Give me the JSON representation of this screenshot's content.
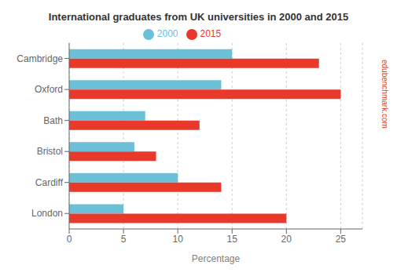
{
  "chart_data": {
    "type": "bar",
    "orientation": "horizontal",
    "title": "International graduates from UK universities in 2000 and 2015",
    "categories": [
      "London",
      "Cardiff",
      "Bristol",
      "Bath",
      "Oxford",
      "Cambridge"
    ],
    "series": [
      {
        "name": "2000",
        "color": "#6BBFD6",
        "values": [
          5,
          10,
          6,
          7,
          14,
          15
        ]
      },
      {
        "name": "2015",
        "color": "#E8392A",
        "values": [
          20,
          14,
          8,
          12,
          25,
          23
        ]
      }
    ],
    "xlabel": "Percentage",
    "xlim": [
      0,
      27
    ],
    "xticks": [
      0,
      5,
      10,
      15,
      20,
      25
    ],
    "grid": true,
    "legend": "top",
    "annotations": [
      {
        "text": "edubenchmark.com",
        "color": "#E8392A"
      }
    ]
  }
}
